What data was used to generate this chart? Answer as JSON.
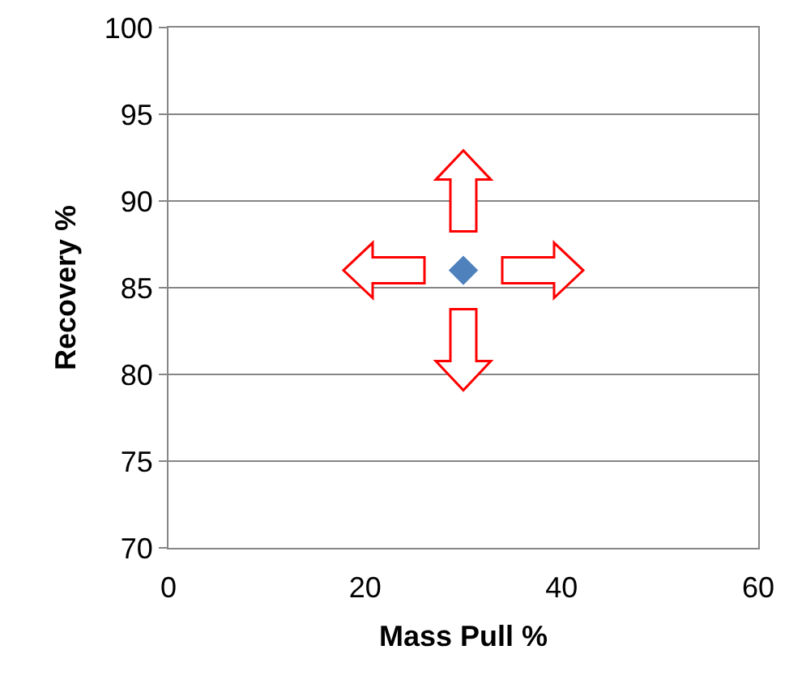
{
  "chart_data": {
    "type": "scatter",
    "xlabel": "Mass Pull %",
    "ylabel": "Recovery %",
    "x": [
      30
    ],
    "values": [
      86
    ],
    "color": "#4f81bd",
    "marker": "diamond",
    "xlim": [
      0,
      60
    ],
    "xticks": [
      0,
      20,
      40,
      60
    ],
    "ylim": [
      70,
      100
    ],
    "yticks": [
      70,
      75,
      80,
      85,
      90,
      95,
      100
    ],
    "grid": "y"
  }
}
